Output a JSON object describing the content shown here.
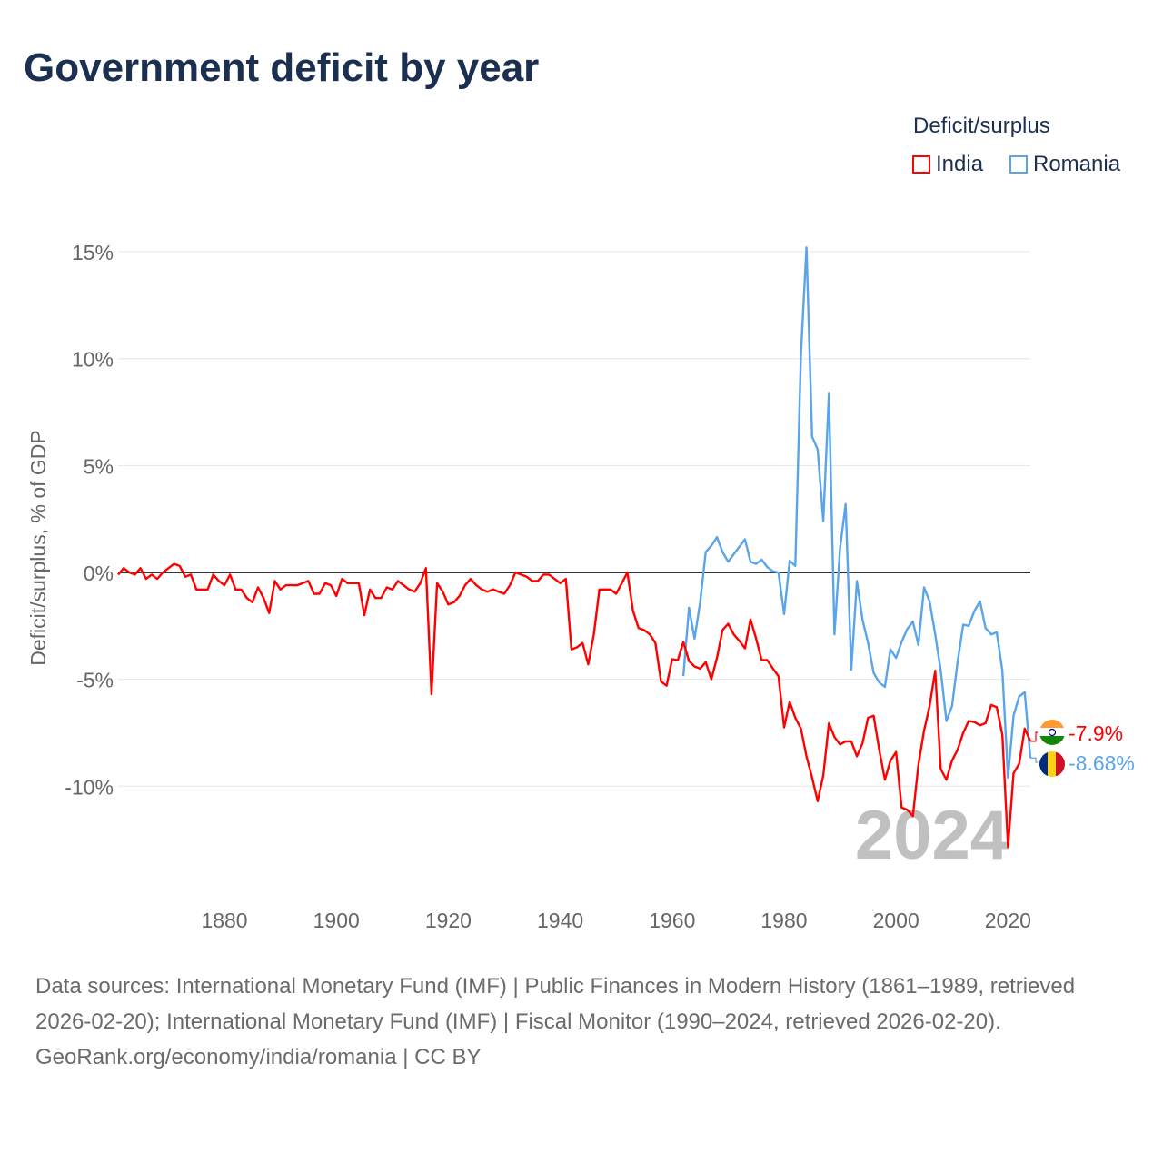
{
  "title": "Government deficit by year",
  "legend": {
    "title": "Deficit/surplus",
    "items": [
      {
        "name": "India",
        "color": "#ff0000"
      },
      {
        "name": "Romania",
        "color": "#5aa5ea"
      }
    ]
  },
  "footer": {
    "sources": "Data sources: International Monetary Fund (IMF) | Public Finances in Modern History (1861–1989, retrieved 2026-02-20); International Monetary Fund (IMF) | Fiscal Monitor (1990–2024, retrieved 2026-02-20).",
    "credit": "GeoRank.org/economy/india/romania | CC BY"
  },
  "chart_data": {
    "type": "line",
    "title": "Government deficit by year",
    "ylabel": "Deficit/surplus, % of GDP",
    "xlabel": "",
    "xlim": [
      1861,
      2024
    ],
    "ylim": [
      -15,
      16.5
    ],
    "yticks": [
      15,
      10,
      5,
      0,
      -5,
      -10
    ],
    "ytick_labels": [
      "15%",
      "10%",
      "5%",
      "0%",
      "-5%",
      "-10%"
    ],
    "xticks": [
      1880,
      1900,
      1920,
      1940,
      1960,
      1980,
      2000,
      2020
    ],
    "xtick_labels": [
      "1880",
      "1900",
      "1920",
      "1940",
      "1960",
      "1980",
      "2000",
      "2020"
    ],
    "grid": true,
    "legend_position": "top-right",
    "current_year_label": "2024",
    "series": [
      {
        "name": "India",
        "color": "#ff0000",
        "start_year": 1861,
        "end_label": "-7.9%",
        "values": [
          -0.1,
          0.2,
          0,
          -0.1,
          0.2,
          -0.3,
          -0.1,
          -0.3,
          0,
          0.2,
          0.4,
          0.3,
          -0.2,
          -0.1,
          -0.8,
          -0.8,
          -0.8,
          -0.1,
          -0.4,
          -0.6,
          -0.1,
          -0.8,
          -0.8,
          -1.2,
          -1.4,
          -0.7,
          -1.2,
          -1.9,
          -0.4,
          -0.8,
          -0.6,
          -0.6,
          -0.6,
          -0.5,
          -0.4,
          -1.0,
          -1.0,
          -0.5,
          -0.6,
          -1.1,
          -0.3,
          -0.5,
          -0.5,
          -0.5,
          -2.0,
          -0.8,
          -1.2,
          -1.2,
          -0.7,
          -0.8,
          -0.4,
          -0.6,
          -0.8,
          -0.9,
          -0.5,
          0.2,
          -5.7,
          -0.5,
          -0.9,
          -1.5,
          -1.4,
          -1.1,
          -0.6,
          -0.3,
          -0.6,
          -0.8,
          -0.9,
          -0.8,
          -0.9,
          -1.0,
          -0.6,
          0.0,
          -0.1,
          -0.2,
          -0.4,
          -0.4,
          -0.1,
          -0.1,
          -0.3,
          -0.5,
          -0.3,
          -3.6,
          -3.5,
          -3.3,
          -4.3,
          -2.9,
          -0.8,
          -0.8,
          -0.8,
          -1.0,
          -0.5,
          0.0,
          -1.8,
          -2.6,
          -2.7,
          -2.9,
          -3.3,
          -5.1,
          -5.3,
          -4.06,
          -4.1,
          -3.25,
          -4.15,
          -4.4,
          -4.5,
          -4.2,
          -5.0,
          -4.0,
          -2.7,
          -2.4,
          -2.9,
          -3.2,
          -3.55,
          -2.2,
          -3.1,
          -4.1,
          -4.1,
          -4.5,
          -4.85,
          -7.25,
          -6.05,
          -6.8,
          -7.3,
          -8.6,
          -9.6,
          -10.7,
          -9.5,
          -7.05,
          -7.7,
          -8.05,
          -7.9,
          -7.9,
          -8.6,
          -8.0,
          -6.8,
          -6.7,
          -8.3,
          -9.7,
          -8.8,
          -8.4,
          -11.0,
          -11.1,
          -11.4,
          -9.0,
          -7.4,
          -6.25,
          -4.6,
          -9.2,
          -9.7,
          -8.8,
          -8.3,
          -7.5,
          -6.95,
          -7.0,
          -7.15,
          -7.05,
          -6.2,
          -6.3,
          -7.6,
          -12.85,
          -9.4,
          -8.95,
          -7.3,
          -7.9
        ]
      },
      {
        "name": "Romania",
        "color": "#5aa5ea",
        "start_year": 1962,
        "end_label": "-8.68%",
        "values": [
          -4.85,
          -1.65,
          -3.1,
          -1.4,
          0.95,
          1.25,
          1.65,
          0.95,
          0.5,
          0.85,
          1.2,
          1.55,
          0.5,
          0.4,
          0.6,
          0.25,
          0.05,
          0,
          -1.95,
          0.55,
          0.3,
          10.2,
          15.2,
          6.35,
          5.75,
          2.4,
          8.4,
          -2.9,
          1.15,
          3.2,
          -4.55,
          -0.4,
          -2.2,
          -3.3,
          -4.7,
          -5.15,
          -5.35,
          -3.6,
          -4.0,
          -3.25,
          -2.65,
          -2.3,
          -3.4,
          -0.7,
          -1.35,
          -2.9,
          -4.6,
          -6.95,
          -6.25,
          -4.2,
          -2.45,
          -2.5,
          -1.8,
          -1.35,
          -2.6,
          -2.9,
          -2.8,
          -4.6,
          -9.6,
          -6.7,
          -5.8,
          -5.6,
          -8.68
        ]
      }
    ]
  }
}
